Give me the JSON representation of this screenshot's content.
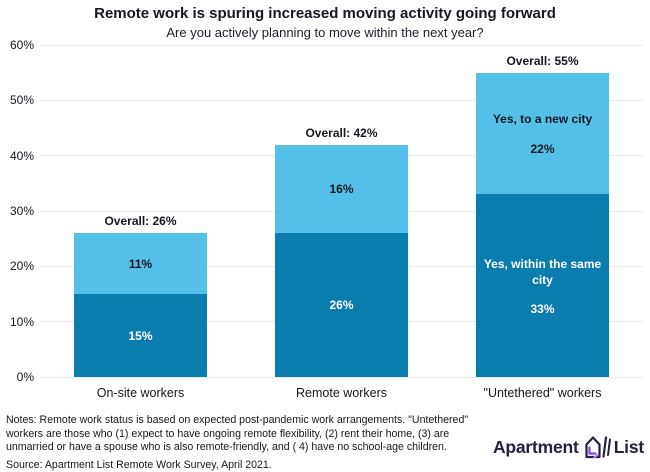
{
  "header": {
    "title": "Remote work is spuring increased moving activity going forward",
    "subtitle": "Are you actively planning to move within the next year?"
  },
  "chart_data": {
    "type": "stacked_bar",
    "title": "Remote work is spuring increased moving activity going forward",
    "subtitle": "Are you actively planning to move within the next year?",
    "categories": [
      "On-site workers",
      "Remote workers",
      "\"Untethered\" workers"
    ],
    "series": [
      {
        "name": "Yes, within the same city",
        "values": [
          15,
          26,
          33
        ],
        "color": "#0a7cad",
        "label_color": "#ffffff"
      },
      {
        "name": "Yes, to a new city",
        "values": [
          11,
          16,
          22
        ],
        "color": "#54c0ea",
        "label_color": "#17171f"
      }
    ],
    "totals": [
      26,
      42,
      55
    ],
    "overall_labels": [
      "Overall: 26%",
      "Overall: 42%",
      "Overall: 55%"
    ],
    "segment_name_labels_bar": 2,
    "value_suffix": "%",
    "ylim": [
      0,
      60
    ],
    "ytick_step": 10,
    "ytick_labels": [
      "0%",
      "10%",
      "20%",
      "30%",
      "40%",
      "50%",
      "60%"
    ],
    "grid": true,
    "legend": "labels-on-bars"
  },
  "footer": {
    "notes": "Notes: Remote work status is based on expected post-pandemic work arrangements. \"Untethered\" workers are those who (1) expect to have ongoing remote flexibility, (2) rent their home, (3) are unmarried or have a spouse who is also remote-friendly, and ( 4) have no school-age children.",
    "source": "Source: Apartment List Remote Work Survey, April 2021."
  },
  "logo": {
    "word1": "Apartment",
    "word2": "List"
  },
  "colors": {
    "same_city_blue": "#0a7cad",
    "new_city_blue": "#54c0ea",
    "gridline": "#e9e9e9",
    "text": "#17171f",
    "logo_navy": "#262041",
    "logo_purple": "#8247e5",
    "logo_violet": "#b18cff"
  }
}
